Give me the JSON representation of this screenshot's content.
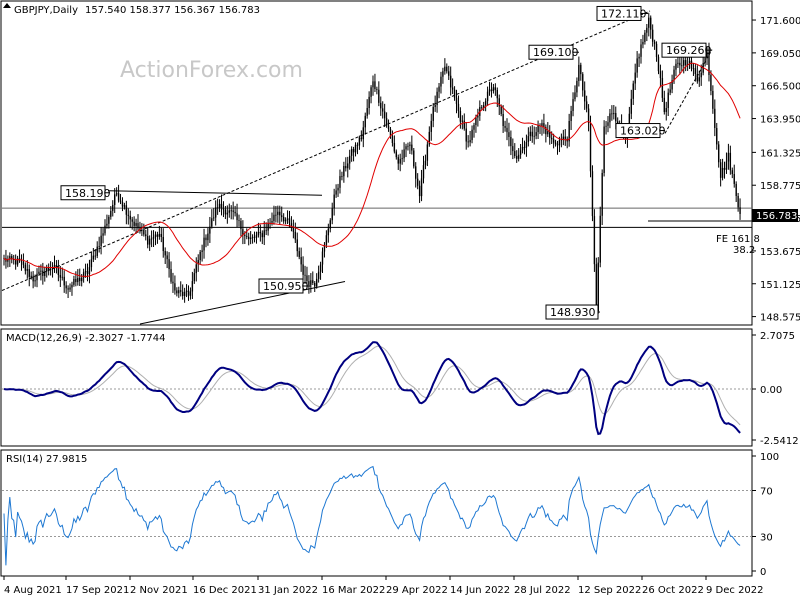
{
  "chart_data": {
    "type": "candlestick",
    "instrument": "GBPJPY,Daily",
    "ohlc": "157.540 158.377 156.367 156.783",
    "watermark": "ActionForex.com",
    "current_price_label": "156.783",
    "fe_label": "FE 161.8",
    "fe_label_2": "38.2",
    "price_axis": {
      "ticks": [
        "171.600",
        "169.050",
        "166.500",
        "163.950",
        "161.325",
        "158.775",
        "156.225",
        "153.675",
        "151.125",
        "148.575"
      ],
      "range": [
        148.0,
        173.0
      ]
    },
    "annotations": [
      {
        "label": "172.110",
        "value": 172.11
      },
      {
        "label": "169.100",
        "value": 169.1
      },
      {
        "label": "169.260",
        "value": 169.26
      },
      {
        "label": "163.020",
        "value": 163.02
      },
      {
        "label": "158.190",
        "value": 158.19
      },
      {
        "label": "150.950",
        "value": 150.95
      },
      {
        "label": "148.930",
        "value": 148.93
      }
    ],
    "x_labels": [
      "4 Aug 2021",
      "17 Sep 2021",
      "2 Nov 2021",
      "16 Dec 2021",
      "31 Jan 2022",
      "16 Mar 2022",
      "29 Apr 2022",
      "14 Jun 2022",
      "28 Jul 2022",
      "12 Sep 2022",
      "26 Oct 2022",
      "9 Dec 2022"
    ],
    "macd": {
      "title": "MACD(12,26,9) -2.3027 -1.7744",
      "ticks": [
        "2.7075",
        "0.00",
        "-2.5412"
      ]
    },
    "rsi": {
      "title": "RSI(14) 27.9815",
      "ticks": [
        "100",
        "70",
        "30",
        "0"
      ]
    },
    "anchors": [
      {
        "d": 0,
        "c": 153.0
      },
      {
        "d": 8,
        "c": 152.8
      },
      {
        "d": 15,
        "c": 151.5
      },
      {
        "d": 25,
        "c": 152.5
      },
      {
        "d": 33,
        "c": 150.8
      },
      {
        "d": 43,
        "c": 152.0
      },
      {
        "d": 52,
        "c": 155.5
      },
      {
        "d": 58,
        "c": 158.2
      },
      {
        "d": 66,
        "c": 156.0
      },
      {
        "d": 74,
        "c": 154.5
      },
      {
        "d": 80,
        "c": 155.0
      },
      {
        "d": 88,
        "c": 150.5
      },
      {
        "d": 95,
        "c": 150.2
      },
      {
        "d": 102,
        "c": 154.0
      },
      {
        "d": 110,
        "c": 157.2
      },
      {
        "d": 118,
        "c": 156.5
      },
      {
        "d": 126,
        "c": 154.5
      },
      {
        "d": 133,
        "c": 155.0
      },
      {
        "d": 141,
        "c": 156.8
      },
      {
        "d": 148,
        "c": 155.5
      },
      {
        "d": 155,
        "c": 151.5
      },
      {
        "d": 160,
        "c": 151.2
      },
      {
        "d": 165,
        "c": 154.0
      },
      {
        "d": 171,
        "c": 158.5
      },
      {
        "d": 178,
        "c": 161.0
      },
      {
        "d": 184,
        "c": 162.5
      },
      {
        "d": 190,
        "c": 167.0
      },
      {
        "d": 196,
        "c": 164.0
      },
      {
        "d": 203,
        "c": 160.5
      },
      {
        "d": 209,
        "c": 162.0
      },
      {
        "d": 214,
        "c": 158.0
      },
      {
        "d": 220,
        "c": 164.0
      },
      {
        "d": 227,
        "c": 168.0
      },
      {
        "d": 233,
        "c": 165.0
      },
      {
        "d": 239,
        "c": 162.0
      },
      {
        "d": 246,
        "c": 165.0
      },
      {
        "d": 252,
        "c": 166.5
      },
      {
        "d": 258,
        "c": 163.0
      },
      {
        "d": 264,
        "c": 161.0
      },
      {
        "d": 270,
        "c": 162.5
      },
      {
        "d": 277,
        "c": 163.5
      },
      {
        "d": 283,
        "c": 162.0
      },
      {
        "d": 290,
        "c": 162.5
      },
      {
        "d": 296,
        "c": 168.0
      },
      {
        "d": 301,
        "c": 163.5
      },
      {
        "d": 305,
        "c": 149.0
      },
      {
        "d": 309,
        "c": 163.5
      },
      {
        "d": 314,
        "c": 164.5
      },
      {
        "d": 320,
        "c": 162.0
      },
      {
        "d": 326,
        "c": 168.5
      },
      {
        "d": 332,
        "c": 171.5
      },
      {
        "d": 336,
        "c": 169.0
      },
      {
        "d": 340,
        "c": 164.5
      },
      {
        "d": 346,
        "c": 168.0
      },
      {
        "d": 352,
        "c": 168.5
      },
      {
        "d": 357,
        "c": 167.0
      },
      {
        "d": 362,
        "c": 169.0
      },
      {
        "d": 366,
        "c": 163.5
      },
      {
        "d": 369,
        "c": 159.5
      },
      {
        "d": 373,
        "c": 161.0
      },
      {
        "d": 377,
        "c": 158.0
      },
      {
        "d": 379,
        "c": 156.8
      }
    ]
  }
}
